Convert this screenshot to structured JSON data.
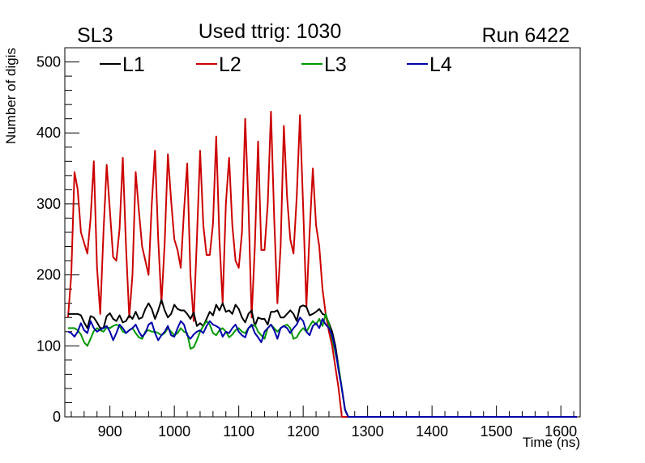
{
  "header": {
    "left": "SL3",
    "center": "Used ttrig: 1030",
    "right": "Run 6422"
  },
  "chart_data": {
    "type": "line",
    "xlabel": "Time (ns)",
    "ylabel": "Number of digis",
    "xlim": [
      830,
      1630
    ],
    "ylim": [
      0,
      520
    ],
    "x_ticks": [
      900,
      1000,
      1100,
      1200,
      1300,
      1400,
      1500,
      1600
    ],
    "y_ticks": [
      0,
      100,
      200,
      300,
      400,
      500
    ],
    "grid": false,
    "legend_position": "top",
    "x": [
      835,
      840,
      845,
      850,
      855,
      860,
      865,
      870,
      875,
      880,
      885,
      890,
      895,
      900,
      905,
      910,
      915,
      920,
      925,
      930,
      935,
      940,
      945,
      950,
      955,
      960,
      965,
      970,
      975,
      980,
      985,
      990,
      995,
      1000,
      1005,
      1010,
      1015,
      1020,
      1025,
      1030,
      1035,
      1040,
      1045,
      1050,
      1055,
      1060,
      1065,
      1070,
      1075,
      1080,
      1085,
      1090,
      1095,
      1100,
      1105,
      1110,
      1115,
      1120,
      1125,
      1130,
      1135,
      1140,
      1145,
      1150,
      1155,
      1160,
      1165,
      1170,
      1175,
      1180,
      1185,
      1190,
      1195,
      1200,
      1205,
      1210,
      1215,
      1220,
      1225,
      1230,
      1235,
      1240,
      1245,
      1250,
      1255,
      1260,
      1265,
      1270,
      1275,
      1280,
      1300,
      1400,
      1500,
      1600,
      1625
    ],
    "series": [
      {
        "name": "L1",
        "color": "#000000",
        "values": [
          145,
          145,
          145,
          145,
          143,
          133,
          125,
          142,
          140,
          133,
          125,
          125,
          142,
          146,
          138,
          135,
          143,
          133,
          135,
          143,
          138,
          148,
          138,
          140,
          152,
          160,
          152,
          138,
          150,
          165,
          150,
          140,
          145,
          158,
          152,
          150,
          150,
          145,
          138,
          147,
          128,
          132,
          128,
          138,
          148,
          143,
          158,
          150,
          160,
          148,
          150,
          145,
          158,
          152,
          140,
          133,
          145,
          150,
          128,
          140,
          138,
          138,
          130,
          148,
          148,
          150,
          140,
          140,
          145,
          150,
          145,
          135,
          155,
          157,
          155,
          143,
          145,
          148,
          152,
          145,
          143,
          132,
          120,
          100,
          70,
          40,
          10,
          0,
          0,
          0,
          0,
          0,
          0,
          0,
          0
        ]
      },
      {
        "name": "L2",
        "color": "#cc0000",
        "values": [
          140,
          200,
          345,
          320,
          260,
          245,
          230,
          280,
          360,
          210,
          145,
          260,
          355,
          290,
          225,
          220,
          265,
          365,
          240,
          140,
          200,
          345,
          290,
          240,
          220,
          200,
          300,
          375,
          250,
          160,
          245,
          370,
          305,
          250,
          235,
          210,
          290,
          357,
          200,
          135,
          250,
          375,
          270,
          228,
          228,
          272,
          395,
          250,
          160,
          300,
          365,
          270,
          220,
          210,
          260,
          420,
          300,
          140,
          240,
          388,
          235,
          235,
          300,
          430,
          280,
          160,
          240,
          410,
          310,
          250,
          230,
          310,
          425,
          295,
          155,
          260,
          350,
          270,
          240,
          180,
          145,
          120,
          100,
          70,
          40,
          0,
          0,
          0,
          0,
          0,
          0,
          0,
          0,
          0,
          0
        ]
      },
      {
        "name": "L3",
        "color": "#009900",
        "values": [
          125,
          125,
          125,
          122,
          116,
          105,
          100,
          110,
          121,
          125,
          122,
          120,
          126,
          125,
          128,
          130,
          128,
          120,
          118,
          122,
          125,
          118,
          112,
          110,
          120,
          122,
          120,
          120,
          118,
          115,
          118,
          125,
          120,
          115,
          118,
          125,
          120,
          118,
          96,
          98,
          108,
          120,
          128,
          135,
          130,
          118,
          115,
          122,
          125,
          120,
          112,
          116,
          122,
          125,
          120,
          118,
          125,
          128,
          130,
          120,
          115,
          110,
          125,
          130,
          125,
          120,
          125,
          128,
          130,
          125,
          110,
          112,
          120,
          125,
          120,
          128,
          135,
          130,
          138,
          128,
          145,
          130,
          110,
          90,
          70,
          40,
          10,
          0,
          0,
          0,
          0,
          0,
          0,
          0,
          0
        ]
      },
      {
        "name": "L4",
        "color": "#0000aa",
        "values": [
          120,
          118,
          113,
          120,
          132,
          122,
          118,
          135,
          125,
          120,
          123,
          125,
          128,
          120,
          108,
          118,
          130,
          125,
          118,
          122,
          125,
          130,
          120,
          113,
          118,
          130,
          133,
          118,
          108,
          115,
          120,
          128,
          115,
          113,
          125,
          135,
          130,
          115,
          110,
          116,
          120,
          122,
          118,
          128,
          135,
          130,
          128,
          125,
          113,
          120,
          118,
          125,
          130,
          120,
          115,
          112,
          125,
          130,
          118,
          112,
          105,
          120,
          125,
          130,
          122,
          110,
          125,
          128,
          125,
          118,
          125,
          130,
          140,
          135,
          120,
          115,
          128,
          132,
          125,
          138,
          130,
          125,
          115,
          95,
          65,
          40,
          10,
          0,
          0,
          0,
          0,
          0,
          0,
          0,
          0
        ]
      }
    ]
  }
}
